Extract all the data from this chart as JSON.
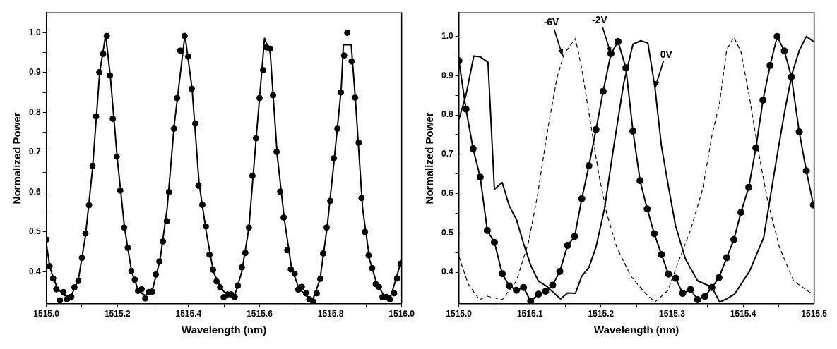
{
  "chart_data": [
    {
      "type": "line",
      "xlabel": "Wavelength (nm)",
      "ylabel": "Normalized Power",
      "xlim": [
        1515.0,
        1516.0
      ],
      "ylim": [
        0.32,
        1.05
      ],
      "xticks": [
        {
          "value": 1515.0,
          "label": "1515.0"
        },
        {
          "value": 1515.1,
          "label": null
        },
        {
          "value": 1515.2,
          "label": "1515.2"
        },
        {
          "value": 1515.3,
          "label": null
        },
        {
          "value": 1515.4,
          "label": "1515.4"
        },
        {
          "value": 1515.5,
          "label": null
        },
        {
          "value": 1515.6,
          "label": "1515.6"
        },
        {
          "value": 1515.7,
          "label": null
        },
        {
          "value": 1515.8,
          "label": "1515.8"
        },
        {
          "value": 1515.9,
          "label": null
        },
        {
          "value": 1516.0,
          "label": "1516.0"
        }
      ],
      "yticks": [
        0.4,
        {
          "value": 0.45,
          "label": null
        },
        0.5,
        {
          "value": 0.55,
          "label": null
        },
        0.6,
        {
          "value": 0.65,
          "label": null
        },
        0.7,
        {
          "value": 0.75,
          "label": null
        },
        0.8,
        {
          "value": 0.85,
          "label": null
        },
        0.9,
        {
          "value": 0.95,
          "label": null
        },
        {
          "value": 1.0,
          "label": "1.0"
        }
      ],
      "grid": false,
      "legend": false,
      "series": [
        {
          "type": "scatter",
          "color": "#000000",
          "marker": "circle",
          "x": [
            1515.0,
            1515.009,
            1515.019,
            1515.028,
            1515.038,
            1515.048,
            1515.058,
            1515.07,
            1515.079,
            1515.09,
            1515.1,
            1515.11,
            1515.12,
            1515.13,
            1515.14,
            1515.149,
            1515.16,
            1515.17,
            1515.179,
            1515.187,
            1515.198,
            1515.208,
            1515.219,
            1515.229,
            1515.239,
            1515.249,
            1515.258,
            1515.268,
            1515.278,
            1515.288,
            1515.298,
            1515.308,
            1515.318,
            1515.328,
            1515.339,
            1515.345,
            1515.359,
            1515.368,
            1515.377,
            1515.389,
            1515.399,
            1515.409,
            1515.419,
            1515.428,
            1515.439,
            1515.449,
            1515.459,
            1515.469,
            1515.479,
            1515.489,
            1515.499,
            1515.51,
            1515.52,
            1515.53,
            1515.539,
            1515.55,
            1515.56,
            1515.57,
            1515.58,
            1515.59,
            1515.6,
            1515.61,
            1515.62,
            1515.63,
            1515.638,
            1515.648,
            1515.658,
            1515.668,
            1515.678,
            1515.688,
            1515.699,
            1515.709,
            1515.719,
            1515.731,
            1515.74,
            1515.751,
            1515.761,
            1515.771,
            1515.779,
            1515.789,
            1515.799,
            1515.809,
            1515.819,
            1515.829,
            1515.838,
            1515.847,
            1515.859,
            1515.869,
            1515.879,
            1515.887,
            1515.897,
            1515.907,
            1515.917,
            1515.927,
            1515.936,
            1515.946,
            1515.957,
            1515.967,
            1515.979,
            1515.987,
            1515.997
          ],
          "values": [
            0.481,
            0.414,
            0.383,
            0.356,
            0.328,
            0.349,
            0.331,
            0.337,
            0.361,
            0.377,
            0.435,
            0.496,
            0.567,
            0.666,
            0.79,
            0.901,
            0.947,
            0.992,
            0.893,
            0.784,
            0.689,
            0.604,
            0.511,
            0.46,
            0.402,
            0.38,
            0.352,
            0.356,
            0.333,
            0.349,
            0.35,
            0.393,
            0.426,
            0.476,
            0.527,
            0.6,
            0.759,
            0.836,
            0.955,
            0.992,
            0.94,
            0.859,
            0.772,
            0.616,
            0.568,
            0.514,
            0.443,
            0.405,
            0.376,
            0.361,
            0.336,
            0.343,
            0.343,
            0.337,
            0.365,
            0.411,
            0.447,
            0.511,
            0.641,
            0.735,
            0.836,
            0.906,
            0.963,
            0.96,
            0.843,
            0.701,
            0.601,
            0.536,
            0.454,
            0.406,
            0.395,
            0.355,
            0.362,
            0.346,
            0.331,
            0.325,
            0.346,
            0.382,
            0.446,
            0.511,
            0.578,
            0.685,
            0.759,
            0.85,
            0.943,
            1.0,
            0.928,
            0.837,
            0.724,
            0.585,
            0.5,
            0.441,
            0.409,
            0.369,
            0.362,
            0.336,
            0.337,
            0.331,
            0.346,
            0.383,
            0.42
          ]
        },
        {
          "color": "#000000",
          "x": [
            1515.0,
            1515.01,
            1515.03,
            1515.05,
            1515.07,
            1515.09,
            1515.11,
            1515.13,
            1515.15,
            1515.167,
            1515.18,
            1515.2,
            1515.22,
            1515.24,
            1515.26,
            1515.28,
            1515.3,
            1515.32,
            1515.34,
            1515.36,
            1515.39,
            1515.41,
            1515.43,
            1515.45,
            1515.47,
            1515.49,
            1515.51,
            1515.53,
            1515.55,
            1515.57,
            1515.59,
            1515.614,
            1515.63,
            1515.65,
            1515.67,
            1515.69,
            1515.71,
            1515.73,
            1515.75,
            1515.77,
            1515.79,
            1515.81,
            1515.83,
            1515.836,
            1515.858,
            1515.87,
            1515.89,
            1515.91,
            1515.93,
            1515.95,
            1515.97,
            1515.99,
            1516.0
          ],
          "values": [
            0.47,
            0.41,
            0.36,
            0.34,
            0.34,
            0.38,
            0.49,
            0.66,
            0.9,
            0.995,
            0.89,
            0.68,
            0.51,
            0.4,
            0.35,
            0.34,
            0.36,
            0.43,
            0.56,
            0.77,
            0.995,
            0.86,
            0.62,
            0.5,
            0.4,
            0.36,
            0.34,
            0.34,
            0.4,
            0.51,
            0.73,
            0.986,
            0.95,
            0.69,
            0.53,
            0.41,
            0.36,
            0.34,
            0.33,
            0.38,
            0.51,
            0.68,
            0.86,
            0.97,
            0.97,
            0.83,
            0.56,
            0.43,
            0.37,
            0.34,
            0.34,
            0.4,
            0.43
          ]
        }
      ]
    },
    {
      "type": "line",
      "xlabel": "Wavelength (nm)",
      "ylabel": "Normalized Power",
      "xlim": [
        1515.0,
        1515.5
      ],
      "ylim": [
        0.32,
        1.06
      ],
      "xticks": [
        {
          "value": 1515.0,
          "label": "1515.0"
        },
        {
          "value": 1515.05,
          "label": null
        },
        1515.1,
        {
          "value": 1515.15,
          "label": null
        },
        1515.2,
        {
          "value": 1515.25,
          "label": null
        },
        1515.3,
        {
          "value": 1515.35,
          "label": null
        },
        1515.4,
        {
          "value": 1515.45,
          "label": null
        },
        1515.5
      ],
      "yticks": [
        0.4,
        {
          "value": 0.45,
          "label": null
        },
        0.5,
        {
          "value": 0.55,
          "label": null
        },
        0.6,
        {
          "value": 0.65,
          "label": null
        },
        0.7,
        {
          "value": 0.75,
          "label": null
        },
        0.8,
        {
          "value": 0.85,
          "label": null
        },
        0.9,
        {
          "value": 0.95,
          "label": null
        },
        {
          "value": 1.0,
          "label": "1.0"
        }
      ],
      "grid": false,
      "legend": false,
      "annotations": [
        {
          "text": "-6V",
          "x": 1515.146,
          "y": 0.95
        },
        {
          "text": "-2V",
          "x": 1515.214,
          "y": 0.956
        },
        {
          "text": "0V",
          "x": 1515.276,
          "y": 0.869
        }
      ],
      "series": [
        {
          "color": "#000000",
          "line_style": "dashed",
          "x": [
            1515.0,
            1515.013,
            1515.029,
            1515.04,
            1515.061,
            1515.081,
            1515.098,
            1515.111,
            1515.124,
            1515.138,
            1515.148,
            1515.164,
            1515.173,
            1515.185,
            1515.197,
            1515.208,
            1515.222,
            1515.242,
            1515.262,
            1515.276,
            1515.294,
            1515.309,
            1515.326,
            1515.343,
            1515.356,
            1515.367,
            1515.377,
            1515.387,
            1515.397,
            1515.409,
            1515.42,
            1515.434,
            1515.451,
            1515.471,
            1515.488,
            1515.5
          ],
          "values": [
            0.44,
            0.37,
            0.33,
            0.339,
            0.33,
            0.378,
            0.476,
            0.599,
            0.752,
            0.894,
            0.955,
            0.995,
            0.918,
            0.783,
            0.648,
            0.55,
            0.464,
            0.39,
            0.347,
            0.324,
            0.353,
            0.427,
            0.507,
            0.611,
            0.746,
            0.832,
            0.967,
            0.998,
            0.961,
            0.845,
            0.722,
            0.587,
            0.464,
            0.378,
            0.356,
            0.341
          ]
        },
        {
          "color": "#000000",
          "marker": "circle",
          "x": [
            1515.0,
            1515.01,
            1515.02,
            1515.03,
            1515.04,
            1515.05,
            1515.061,
            1515.071,
            1515.081,
            1515.091,
            1515.101,
            1515.112,
            1515.122,
            1515.132,
            1515.142,
            1515.153,
            1515.163,
            1515.173,
            1515.183,
            1515.193,
            1515.203,
            1515.214,
            1515.224,
            1515.235,
            1515.245,
            1515.255,
            1515.265,
            1515.275,
            1515.285,
            1515.295,
            1515.305,
            1515.315,
            1515.326,
            1515.336,
            1515.346,
            1515.356,
            1515.366,
            1515.377,
            1515.387,
            1515.397,
            1515.408,
            1515.418,
            1515.428,
            1515.438,
            1515.448,
            1515.458,
            1515.468,
            1515.479,
            1515.489,
            1515.499
          ],
          "values": [
            0.938,
            0.815,
            0.714,
            0.642,
            0.506,
            0.476,
            0.396,
            0.365,
            0.354,
            0.361,
            0.326,
            0.344,
            0.351,
            0.367,
            0.402,
            0.468,
            0.491,
            0.587,
            0.671,
            0.763,
            0.86,
            0.956,
            0.987,
            0.92,
            0.759,
            0.633,
            0.561,
            0.498,
            0.445,
            0.395,
            0.385,
            0.346,
            0.356,
            0.33,
            0.338,
            0.361,
            0.386,
            0.437,
            0.483,
            0.552,
            0.616,
            0.716,
            0.838,
            0.926,
            1.0,
            0.963,
            0.897,
            0.757,
            0.658,
            0.571
          ]
        },
        {
          "color": "#000000",
          "x": [
            1515.0,
            1515.01,
            1515.021,
            1515.03,
            1515.041,
            1515.05,
            1515.061,
            1515.071,
            1515.081,
            1515.091,
            1515.101,
            1515.112,
            1515.123,
            1515.143,
            1515.153,
            1515.164,
            1515.173,
            1515.183,
            1515.193,
            1515.205,
            1515.217,
            1515.232,
            1515.245,
            1515.256,
            1515.266,
            1515.276,
            1515.285,
            1515.295,
            1515.305,
            1515.319,
            1515.336,
            1515.356,
            1515.367,
            1515.377,
            1515.388,
            1515.398,
            1515.409,
            1515.419,
            1515.429,
            1515.439,
            1515.449,
            1515.459,
            1515.469,
            1515.479,
            1515.489,
            1515.5
          ],
          "values": [
            0.789,
            0.851,
            0.95,
            0.948,
            0.934,
            0.611,
            0.628,
            0.568,
            0.534,
            0.473,
            0.418,
            0.377,
            0.365,
            0.332,
            0.347,
            0.346,
            0.39,
            0.412,
            0.464,
            0.562,
            0.709,
            0.881,
            0.98,
            0.989,
            0.983,
            0.869,
            0.722,
            0.617,
            0.518,
            0.433,
            0.378,
            0.362,
            0.324,
            0.332,
            0.344,
            0.372,
            0.402,
            0.445,
            0.488,
            0.599,
            0.709,
            0.814,
            0.906,
            0.964,
            1.0,
            0.986
          ]
        }
      ]
    }
  ]
}
